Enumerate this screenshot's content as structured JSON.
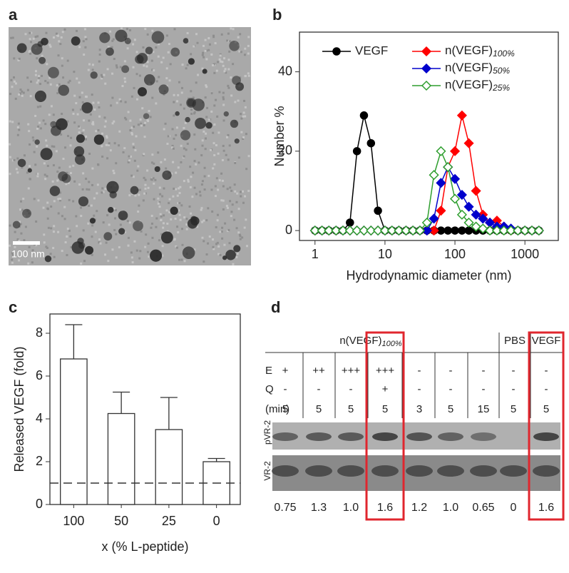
{
  "panel_labels": [
    "a",
    "b",
    "c",
    "d"
  ],
  "image": {
    "scale_bar": "100 nm"
  },
  "chart_data": [
    {
      "type": "line",
      "log_x": true,
      "xlabel": "Hydrodynamic diameter (nm)",
      "ylabel": "Number %",
      "x": [
        1,
        1.26,
        1.58,
        2.0,
        2.51,
        3.16,
        3.98,
        5.01,
        6.31,
        7.94,
        10,
        12.6,
        15.8,
        20,
        25.1,
        31.6,
        39.8,
        50.1,
        63.1,
        79.4,
        100,
        126,
        158,
        200,
        251,
        316,
        398,
        501,
        631,
        794,
        1000,
        1259,
        1585
      ],
      "xlim": [
        0.6,
        3000
      ],
      "xticks": [
        1,
        10,
        100,
        1000
      ],
      "ylim": [
        -2.5,
        50
      ],
      "yticks": [
        0,
        20,
        40
      ],
      "series": [
        {
          "name": "VEGF",
          "color": "#000000",
          "marker": "circle",
          "filled": true,
          "values": [
            0,
            0,
            0,
            0,
            0,
            2,
            20,
            29,
            22,
            5,
            0,
            0,
            0,
            0,
            0,
            0,
            0,
            0,
            0,
            0,
            0,
            0,
            0,
            0,
            0,
            0,
            0,
            0,
            0,
            0,
            0,
            0,
            0
          ]
        },
        {
          "name": "n(VEGF)100%",
          "color": "#ff0000",
          "marker": "diamond",
          "filled": true,
          "values": [
            0,
            0,
            0,
            0,
            0,
            0,
            0,
            0,
            0,
            0,
            0,
            0,
            0,
            0,
            0,
            0,
            0,
            0,
            5,
            16,
            20,
            29,
            22,
            10,
            4,
            2,
            2.5,
            1,
            0,
            0,
            0,
            0,
            0
          ]
        },
        {
          "name": "n(VEGF)50%",
          "color": "#0000cc",
          "marker": "diamond",
          "filled": true,
          "values": [
            0,
            0,
            0,
            0,
            0,
            0,
            0,
            0,
            0,
            0,
            0,
            0,
            0,
            0,
            0,
            0,
            0,
            3,
            12,
            16,
            13,
            9,
            6,
            4,
            3,
            2,
            1,
            1,
            0.5,
            0,
            0,
            0,
            0
          ]
        },
        {
          "name": "n(VEGF)25%",
          "color": "#2e9e2e",
          "marker": "diamond",
          "filled": false,
          "values": [
            0,
            0,
            0,
            0,
            0,
            0,
            0,
            0,
            0,
            0,
            0,
            0,
            0,
            0,
            0,
            0,
            2,
            14,
            20,
            16,
            8,
            4,
            2,
            1,
            0.5,
            0,
            0,
            0,
            0,
            0,
            0,
            0,
            0
          ]
        }
      ]
    },
    {
      "type": "bar",
      "xlabel": "x (% L-peptide)",
      "ylabel": "Released VEGF (fold)",
      "categories": [
        "100",
        "50",
        "25",
        "0"
      ],
      "values": [
        6.8,
        4.25,
        3.5,
        2.0
      ],
      "errors": [
        1.6,
        1.0,
        1.5,
        0.15
      ],
      "color": "#ffffff",
      "ylim": [
        0,
        8.9
      ],
      "yticks": [
        0,
        2,
        4,
        6,
        8
      ],
      "reference_line": 1
    }
  ],
  "blot": {
    "group_headers": [
      "n(VEGF)100%",
      "PBS",
      "VEGF"
    ],
    "row_labels": [
      "E",
      "Q",
      "(min)"
    ],
    "rows": [
      [
        "+",
        "++",
        "+++",
        "+++",
        "-",
        "-",
        "-",
        "-",
        "-"
      ],
      [
        "-",
        "-",
        "-",
        "+",
        "-",
        "-",
        "-",
        "-",
        "-"
      ],
      [
        "5",
        "5",
        "5",
        "5",
        "3",
        "5",
        "15",
        "5",
        "5"
      ]
    ],
    "lane_labels": [
      "pVR-2",
      "VR-2"
    ],
    "values": [
      "0.75",
      "1.3",
      "1.0",
      "1.6",
      "1.2",
      "1.0",
      "0.65",
      "0",
      "1.6"
    ]
  }
}
